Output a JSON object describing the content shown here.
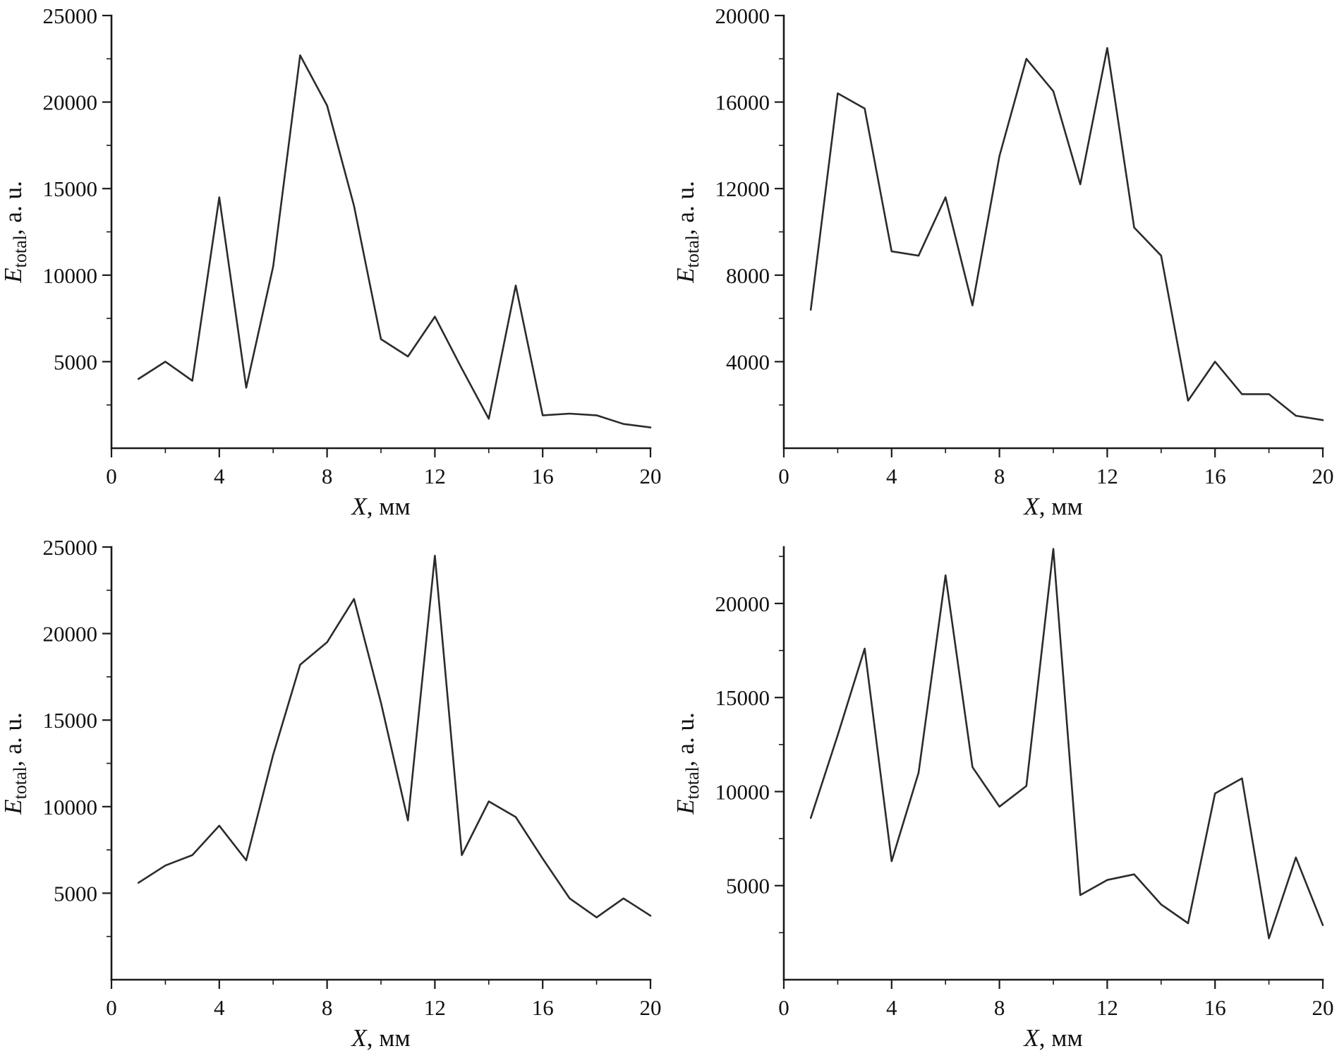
{
  "figure": {
    "background": "#ffffff",
    "line_color": "#2b2b2b",
    "axis_color": "#1a1a1a",
    "layout": "2x2-grid",
    "legend": "none",
    "grid_lines": false
  },
  "chart_data": [
    {
      "type": "line",
      "panel": "top-left",
      "title": "",
      "xlabel": {
        "var": "X",
        "rest": ", мм"
      },
      "ylabel": {
        "var": "E",
        "sub": "total",
        "rest": ", a. u."
      },
      "xlim": [
        0,
        20
      ],
      "ylim": [
        0,
        25000
      ],
      "xticks": [
        0,
        4,
        8,
        12,
        16,
        20
      ],
      "yticks": [
        5000,
        10000,
        15000,
        20000,
        25000
      ],
      "x_minor_step": 2,
      "y_minor_step": 2500,
      "x": [
        1,
        2,
        3,
        4,
        5,
        6,
        7,
        8,
        9,
        10,
        11,
        12,
        13,
        14,
        15,
        16,
        17,
        18,
        19,
        20
      ],
      "values": [
        4000,
        5000,
        3900,
        14500,
        3500,
        10500,
        22700,
        19800,
        14000,
        6300,
        5300,
        7600,
        4600,
        1700,
        9400,
        1900,
        2000,
        1900,
        1400,
        1200
      ]
    },
    {
      "type": "line",
      "panel": "top-right",
      "title": "",
      "xlabel": {
        "var": "X",
        "rest": ", мм"
      },
      "ylabel": {
        "var": "E",
        "sub": "total",
        "rest": ", a. u."
      },
      "xlim": [
        0,
        20
      ],
      "ylim": [
        0,
        20000
      ],
      "xticks": [
        0,
        4,
        8,
        12,
        16,
        20
      ],
      "yticks": [
        4000,
        8000,
        12000,
        16000,
        20000
      ],
      "x_minor_step": 2,
      "y_minor_step": 2000,
      "x": [
        1,
        2,
        3,
        4,
        5,
        6,
        7,
        8,
        9,
        10,
        11,
        12,
        13,
        14,
        15,
        16,
        17,
        18,
        19,
        20
      ],
      "values": [
        6400,
        16400,
        15700,
        9100,
        8900,
        11600,
        6600,
        13500,
        18000,
        16500,
        12200,
        18500,
        10200,
        8900,
        2200,
        4000,
        2500,
        2500,
        1500,
        1300
      ]
    },
    {
      "type": "line",
      "panel": "bottom-left",
      "title": "",
      "xlabel": {
        "var": "X",
        "rest": ", мм"
      },
      "ylabel": {
        "var": "E",
        "sub": "total",
        "rest": ", a. u."
      },
      "xlim": [
        0,
        20
      ],
      "ylim": [
        0,
        25000
      ],
      "xticks": [
        0,
        4,
        8,
        12,
        16,
        20
      ],
      "yticks": [
        5000,
        10000,
        15000,
        20000,
        25000
      ],
      "x_minor_step": 2,
      "y_minor_step": 2500,
      "x": [
        1,
        2,
        3,
        4,
        5,
        6,
        7,
        8,
        9,
        10,
        11,
        12,
        13,
        14,
        15,
        16,
        17,
        18,
        19,
        20
      ],
      "values": [
        5600,
        6600,
        7200,
        8900,
        6900,
        13000,
        18200,
        19500,
        22000,
        16000,
        9200,
        24500,
        7200,
        10300,
        9400,
        7000,
        4700,
        3600,
        4700,
        3700
      ]
    },
    {
      "type": "line",
      "panel": "bottom-right",
      "title": "",
      "xlabel": {
        "var": "X",
        "rest": ", мм"
      },
      "ylabel": {
        "var": "E",
        "sub": "total",
        "rest": ", a. u."
      },
      "xlim": [
        0,
        20
      ],
      "ylim": [
        0,
        23000
      ],
      "xticks": [
        0,
        4,
        8,
        12,
        16,
        20
      ],
      "yticks": [
        5000,
        10000,
        15000,
        20000
      ],
      "x_minor_step": 2,
      "y_minor_step": 2500,
      "x": [
        1,
        2,
        3,
        4,
        5,
        6,
        7,
        8,
        9,
        10,
        11,
        12,
        13,
        14,
        15,
        16,
        17,
        18,
        19,
        20
      ],
      "values": [
        8600,
        13000,
        17600,
        6300,
        11000,
        21500,
        11300,
        9200,
        10300,
        22900,
        4500,
        5300,
        5600,
        4000,
        3000,
        9900,
        10700,
        2200,
        6500,
        2900
      ]
    }
  ]
}
